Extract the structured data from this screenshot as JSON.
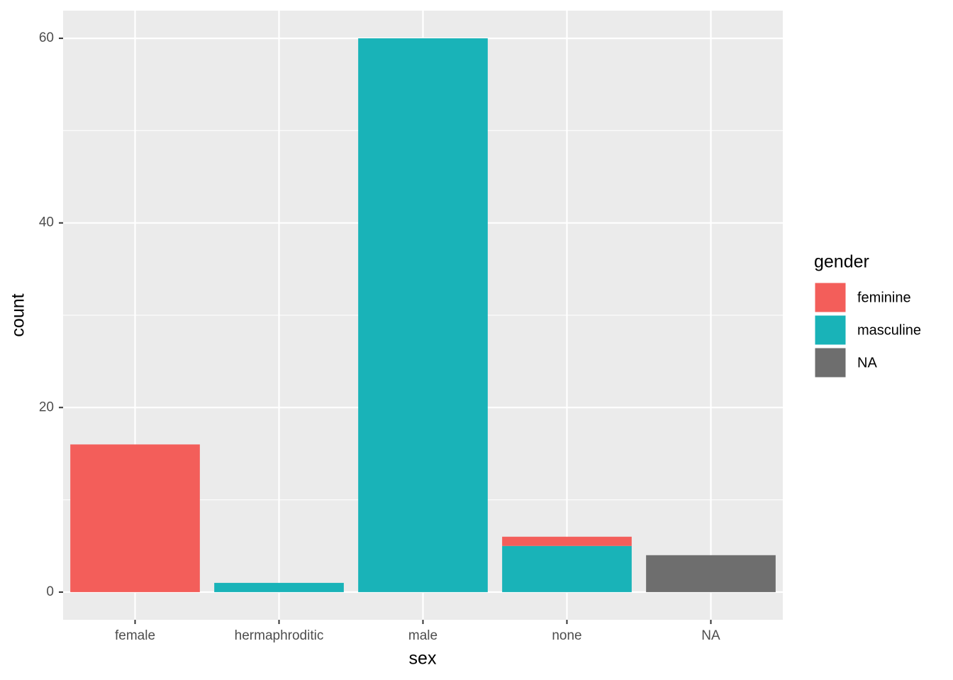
{
  "chart_data": {
    "type": "stacked_bar",
    "x_label": "sex",
    "y_label": "count",
    "categories": [
      "female",
      "hermaphroditic",
      "male",
      "none",
      "NA"
    ],
    "series": [
      {
        "name": "feminine",
        "color": "#f35e5a",
        "values": [
          16,
          0,
          0,
          1,
          0
        ]
      },
      {
        "name": "masculine",
        "color": "#19b3b8",
        "values": [
          0,
          1,
          60,
          5,
          0
        ]
      },
      {
        "name": "NA",
        "color": "#6e6e6e",
        "values": [
          0,
          0,
          0,
          0,
          4
        ]
      }
    ],
    "legend_title": "gender",
    "legend_position": "right",
    "ylim": [
      -3,
      63
    ],
    "yticks": [
      0,
      20,
      40,
      60
    ],
    "minor_yticks": [
      10,
      30,
      50
    ],
    "grid": true
  }
}
